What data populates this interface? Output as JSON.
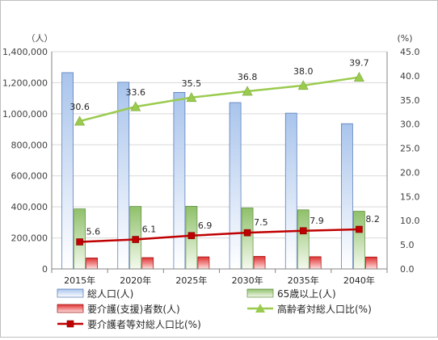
{
  "chart_data": {
    "type": "bar",
    "categories": [
      "2015年",
      "2020年",
      "2025年",
      "2030年",
      "2035年",
      "2040年"
    ],
    "series": [
      {
        "name": "総人口(人)",
        "kind": "bar",
        "axis": "left",
        "color": "#7fa6dc",
        "values": [
          1265000,
          1203000,
          1138000,
          1072000,
          1004000,
          936000
        ]
      },
      {
        "name": "65歳以上(人)",
        "kind": "bar",
        "axis": "left",
        "color": "#8fc06a",
        "values": [
          387000,
          403000,
          404000,
          393000,
          381000,
          372000
        ]
      },
      {
        "name": "要介護(支援)者数(人)",
        "kind": "bar",
        "axis": "left",
        "color": "#d42020",
        "values": [
          71000,
          73000,
          78000,
          81000,
          79000,
          77000
        ]
      },
      {
        "name": "高齢者対総人口比(%)",
        "kind": "line",
        "axis": "right",
        "color": "#9acb4e",
        "values": [
          30.6,
          33.6,
          35.5,
          36.8,
          38.0,
          39.7
        ]
      },
      {
        "name": "要介護者等対総人口比(%)",
        "kind": "line",
        "axis": "right",
        "color": "#c00000",
        "values": [
          5.6,
          6.1,
          6.9,
          7.5,
          7.9,
          8.2
        ]
      }
    ],
    "left_axis": {
      "unit_label": "（人）",
      "ylim": [
        0,
        1400000
      ],
      "ticks": [
        "0",
        "200,000",
        "400,000",
        "600,000",
        "800,000",
        "1,000,000",
        "1,200,000",
        "1,400,000"
      ]
    },
    "right_axis": {
      "unit_label": "(%)",
      "ylim": [
        0,
        45
      ],
      "ticks": [
        "0.0",
        "5.0",
        "10.0",
        "15.0",
        "20.0",
        "25.0",
        "30.0",
        "35.0",
        "40.0",
        "45.0"
      ]
    },
    "line_labels": {
      "高齢者対総人口比(%)": [
        "30.6",
        "33.6",
        "35.5",
        "36.8",
        "38.0",
        "39.7"
      ],
      "要介護者等対総人口比(%)": [
        "5.6",
        "6.1",
        "6.9",
        "7.5",
        "7.9",
        "8.2"
      ]
    },
    "grid": true,
    "legend_position": "bottom"
  }
}
